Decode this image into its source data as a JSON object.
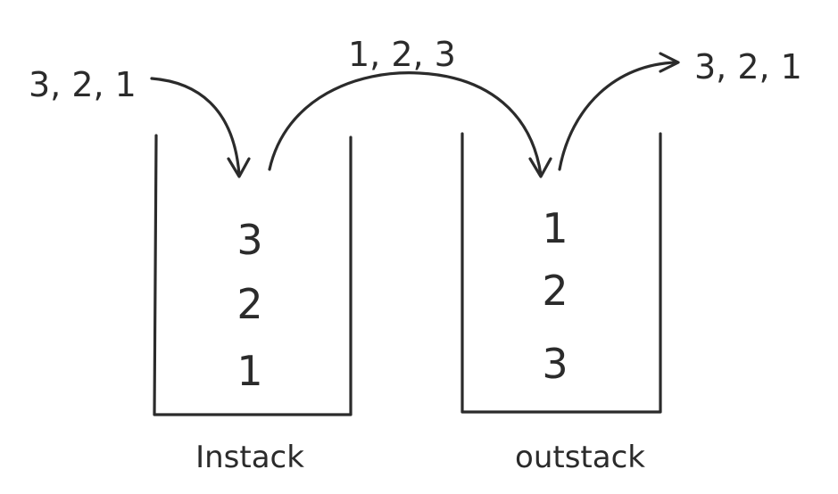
{
  "input_sequence": "3, 2, 1",
  "transfer_sequence": "1, 2, 3",
  "output_sequence": "3, 2, 1",
  "instack": {
    "label": "Instack",
    "items": [
      "3",
      "2",
      "1"
    ]
  },
  "outstack": {
    "label": "outstack",
    "items": [
      "1",
      "2",
      "3"
    ]
  },
  "colors": {
    "ink": "#2b2b2b",
    "background": "#ffffff"
  }
}
